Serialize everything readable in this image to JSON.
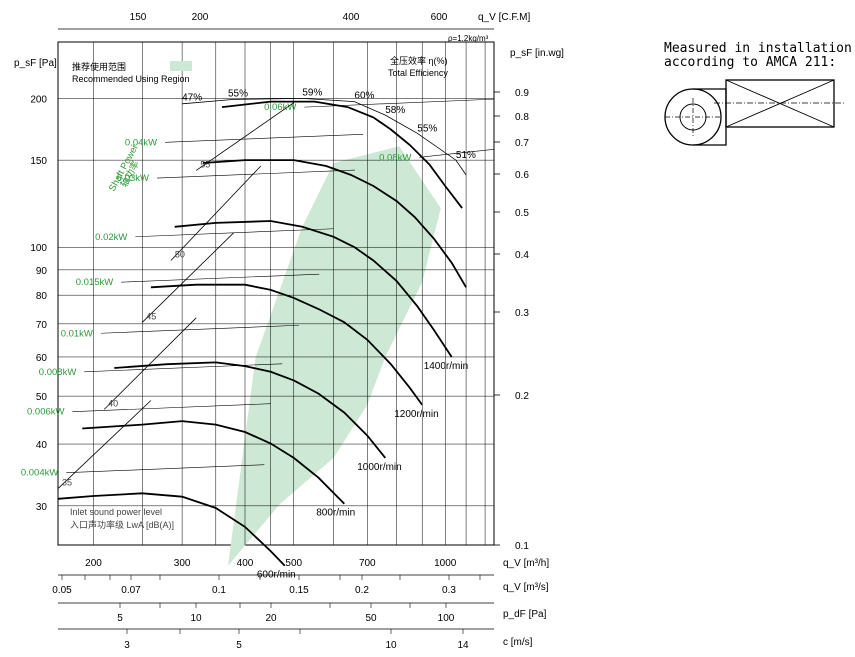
{
  "chart_data": {
    "type": "line",
    "subtype": "fan performance curves",
    "axes": {
      "x_primary": {
        "label": "q_V [m³/h]",
        "scale": "log",
        "range": [
          170,
          1250
        ],
        "ticks": [
          200,
          300,
          400,
          500,
          700,
          1000
        ]
      },
      "x_top": {
        "label": "q_V [C.F.M]",
        "ticks": [
          150,
          200,
          400,
          600
        ]
      },
      "x_m3s": {
        "label": "q_V [m³/s]",
        "ticks": [
          "0.05",
          "0.07",
          "0.1",
          "0.15",
          "0.2",
          "0.3"
        ]
      },
      "x_pdf": {
        "label": "p_dF [Pa]",
        "ticks": [
          "5",
          "10",
          "20",
          "50",
          "100"
        ]
      },
      "x_velocity": {
        "label": "c [m/s]",
        "ticks": [
          "3",
          "5",
          "10",
          "14"
        ]
      },
      "y_left": {
        "label": "p_sF [Pa]",
        "scale": "log",
        "range": [
          25,
          260
        ],
        "ticks": [
          30,
          40,
          50,
          60,
          70,
          80,
          90,
          100,
          150,
          200
        ]
      },
      "y_right": {
        "label": "p_sF [in.wg]",
        "ticks": [
          "0.9",
          "0.8",
          "0.7",
          "0.6",
          "0.5",
          "0.4",
          "0.3",
          "0.2",
          "0.1"
        ]
      }
    },
    "density_note": "ρ=1.2kg/m³",
    "speed_curves": [
      {
        "label": "600r/min",
        "x": [
          170,
          200,
          250,
          300,
          350,
          400,
          450,
          480
        ],
        "y": [
          31,
          31.4,
          31.8,
          31.3,
          29.7,
          27.2,
          24.3,
          22.7
        ]
      },
      {
        "label": "800r/min",
        "x": [
          190,
          250,
          300,
          350,
          400,
          450,
          500,
          560,
          630
        ],
        "y": [
          43,
          43.8,
          44.5,
          43.8,
          42.3,
          40.1,
          37.5,
          34.2,
          30.3
        ]
      },
      {
        "label": "1000r/min",
        "x": [
          220,
          280,
          350,
          400,
          450,
          500,
          560,
          630,
          700,
          760
        ],
        "y": [
          57,
          58,
          58.5,
          57.5,
          56,
          53.8,
          50.6,
          46.3,
          41.6,
          37.5
        ]
      },
      {
        "label": "1200r/min",
        "x": [
          260,
          320,
          400,
          450,
          500,
          560,
          630,
          700,
          780,
          850,
          900
        ],
        "y": [
          83,
          84,
          84,
          82,
          79,
          75,
          70.5,
          65,
          58,
          52,
          48
        ]
      },
      {
        "label": "1400r/min",
        "x": [
          290,
          350,
          450,
          520,
          600,
          660,
          720,
          800,
          880,
          950,
          1030
        ],
        "y": [
          110,
          112,
          113,
          110,
          105,
          100,
          94,
          85.5,
          76,
          68,
          60
        ]
      },
      {
        "label": "",
        "x": [
          330,
          400,
          500,
          580,
          650,
          720,
          800,
          870,
          950,
          1030,
          1100
        ],
        "y": [
          148,
          150,
          150,
          146,
          140,
          133,
          124,
          115,
          104,
          93,
          83
        ]
      },
      {
        "label": "",
        "x": [
          360,
          450,
          550,
          640,
          720,
          780,
          850,
          930,
          1000,
          1080
        ],
        "y": [
          192,
          197,
          197,
          192,
          183,
          173,
          161,
          147,
          133,
          120
        ]
      }
    ],
    "efficiency_curves": [
      {
        "label": "35",
        "x": [
          170,
          260
        ],
        "y": [
          32.5,
          49
        ]
      },
      {
        "label": "40",
        "x": [
          210,
          320
        ],
        "y": [
          47,
          72
        ]
      },
      {
        "label": "45",
        "x": [
          250,
          380
        ],
        "y": [
          70.5,
          107
        ]
      },
      {
        "label": "50",
        "x": [
          285,
          430
        ],
        "y": [
          94,
          146
        ]
      },
      {
        "label": "55",
        "x": [
          320,
          500
        ],
        "y": [
          143,
          196
        ]
      },
      {
        "label": "47%",
        "x": [
          300,
          320
        ],
        "y": [
          196,
          205
        ]
      },
      {
        "label": "55%",
        "x": [
          370,
          390
        ],
        "y": [
          200,
          206
        ]
      },
      {
        "label": "59%",
        "x": [
          520,
          540
        ],
        "y": [
          201,
          206
        ]
      },
      {
        "label": "60%",
        "x": [
          660,
          680
        ],
        "y": [
          198,
          203
        ]
      },
      {
        "label": "58%",
        "x": [
          760,
          780
        ],
        "y": [
          185,
          190
        ]
      },
      {
        "label": "55%",
        "x": [
          880,
          900
        ],
        "y": [
          170,
          175
        ]
      },
      {
        "label": "51%",
        "x": [
          1050,
          1070
        ],
        "y": [
          150,
          155
        ]
      }
    ],
    "shaft_power_lines": [
      {
        "label": "0.004kW",
        "x": 175,
        "y": 35
      },
      {
        "label": "0.006kW",
        "x": 180,
        "y": 46.5
      },
      {
        "label": "0.008kW",
        "x": 190,
        "y": 56
      },
      {
        "label": "0.01kW",
        "x": 205,
        "y": 67
      },
      {
        "label": "0.015kW",
        "x": 225,
        "y": 85
      },
      {
        "label": "0.02kW",
        "x": 240,
        "y": 105
      },
      {
        "label": "0.03kW",
        "x": 265,
        "y": 138
      },
      {
        "label": "0.04kW",
        "x": 275,
        "y": 163
      },
      {
        "label": "0.06kW",
        "x": 520,
        "y": 192
      },
      {
        "label": "0.08kW",
        "x": 880,
        "y": 152
      }
    ],
    "recommended_region": {
      "x": [
        370,
        470,
        600,
        700,
        760,
        900,
        980,
        810,
        600,
        520,
        420,
        370
      ],
      "y": [
        22.7,
        30.3,
        37.5,
        48,
        60,
        85,
        120,
        160,
        148,
        110,
        60,
        22.7
      ]
    },
    "legend": {
      "region_cn": "推荐使用范围",
      "region_en": "Recommended Using Region",
      "efficiency_cn": "全压效率 η(%)",
      "efficiency_en": "Total Efficiency",
      "shaft_power_en": "Shaft Power",
      "shaft_power_cn": "轴功率",
      "sound_en": "Inlet sound power level",
      "sound_cn": "入口声功率级 LwA [dB(A)]"
    },
    "colors": {
      "region_fill": "#cde8d4",
      "shaft_green": "#2e9a3a",
      "curve": "#000000"
    }
  },
  "installation": {
    "line1": "Measured in installation B",
    "line2": "according to AMCA 211:"
  }
}
